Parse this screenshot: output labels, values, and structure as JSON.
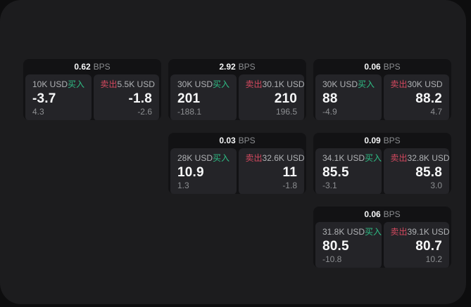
{
  "labels": {
    "buy": "买入",
    "sell": "卖出",
    "bps_unit": "BPS"
  },
  "colors": {
    "buy_green": "#2ebd85",
    "sell_red": "#d5495f",
    "surface": "#1c1c1e",
    "card": "#121214",
    "panel": "#242428"
  },
  "cards": [
    {
      "col": 1,
      "row": 1,
      "bps": "0.62",
      "buy_amount": "10K USD",
      "buy_value": "-3.7",
      "buy_sub": "4.3",
      "sell_amount": "5.5K USD",
      "sell_value": "-1.8",
      "sell_sub": "-2.6"
    },
    {
      "col": 2,
      "row": 1,
      "bps": "2.92",
      "buy_amount": "30K USD",
      "buy_value": "201",
      "buy_sub": "-188.1",
      "sell_amount": "30.1K USD",
      "sell_value": "210",
      "sell_sub": "196.5"
    },
    {
      "col": 3,
      "row": 1,
      "bps": "0.06",
      "buy_amount": "30K USD",
      "buy_value": "88",
      "buy_sub": "-4.9",
      "sell_amount": "30K USD",
      "sell_value": "88.2",
      "sell_sub": "4.7"
    },
    {
      "col": 2,
      "row": 2,
      "bps": "0.03",
      "buy_amount": "28K USD",
      "buy_value": "10.9",
      "buy_sub": "1.3",
      "sell_amount": "32.6K USD",
      "sell_value": "11",
      "sell_sub": "-1.8"
    },
    {
      "col": 3,
      "row": 2,
      "bps": "0.09",
      "buy_amount": "34.1K USD",
      "buy_value": "85.5",
      "buy_sub": "-3.1",
      "sell_amount": "32.8K USD",
      "sell_value": "85.8",
      "sell_sub": "3.0"
    },
    {
      "col": 3,
      "row": 3,
      "bps": "0.06",
      "buy_amount": "31.8K USD",
      "buy_value": "80.5",
      "buy_sub": "-10.8",
      "sell_amount": "39.1K USD",
      "sell_value": "80.7",
      "sell_sub": "10.2"
    }
  ]
}
